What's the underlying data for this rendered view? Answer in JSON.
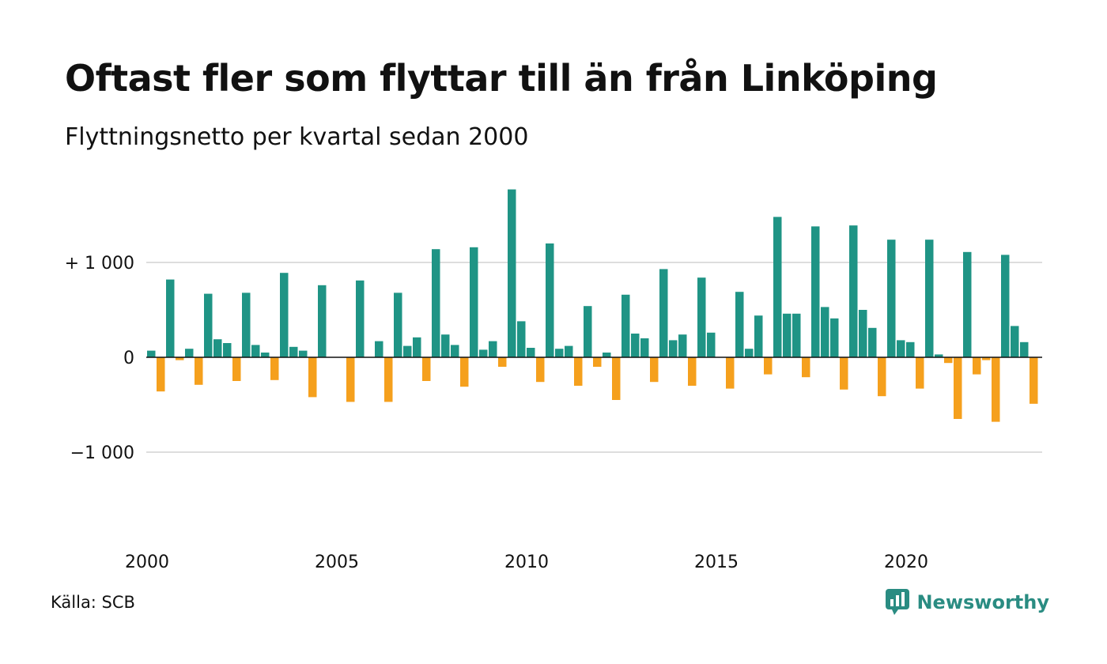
{
  "header": {
    "title": "Oftast fler som flyttar till än från Linköping",
    "subtitle": "Flyttningsnetto per kvartal sedan 2000"
  },
  "footer": {
    "source": "Källa: SCB",
    "brand": "Newsworthy"
  },
  "colors": {
    "positive": "#1f9485",
    "negative": "#f5a01d",
    "grid": "#dddddd",
    "zero_line": "#111111",
    "brand": "#2a8c82"
  },
  "chart_data": {
    "type": "bar",
    "title": "Oftast fler som flyttar till än från Linköping",
    "subtitle": "Flyttningsnetto per kvartal sedan 2000",
    "x_start": "2000 Q1",
    "x_ticks": [
      "2000",
      "2005",
      "2010",
      "2015",
      "2020"
    ],
    "x_tick_years": [
      2000,
      2005,
      2010,
      2015,
      2020
    ],
    "y_ticks": [
      1000,
      0,
      -1000
    ],
    "y_tick_labels": [
      "+ 1 000",
      "0",
      "−1 000"
    ],
    "ylim": [
      -1500,
      1800
    ],
    "grid": "horizontal",
    "values": [
      70,
      -360,
      820,
      -30,
      90,
      -290,
      670,
      190,
      150,
      -250,
      680,
      130,
      50,
      -240,
      890,
      110,
      70,
      -420,
      760,
      0,
      0,
      -470,
      810,
      0,
      170,
      -470,
      680,
      120,
      210,
      -250,
      1140,
      240,
      130,
      -310,
      1160,
      80,
      170,
      -100,
      1770,
      380,
      100,
      -260,
      1200,
      90,
      120,
      -300,
      540,
      -100,
      50,
      -450,
      660,
      250,
      200,
      -260,
      930,
      180,
      240,
      -300,
      840,
      260,
      0,
      -330,
      690,
      90,
      440,
      -180,
      1480,
      460,
      460,
      -210,
      1380,
      530,
      410,
      -340,
      1390,
      500,
      310,
      -410,
      1240,
      180,
      160,
      -330,
      1240,
      30,
      -60,
      -650,
      1110,
      -180,
      -30,
      -680,
      1080,
      330,
      160,
      -490
    ]
  }
}
